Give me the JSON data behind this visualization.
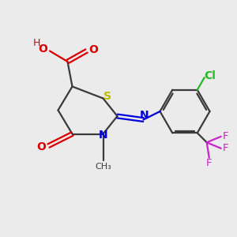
{
  "background_color": "#ebebeb",
  "bond_color": "#3a3a3a",
  "colors": {
    "S": "#bbbb00",
    "N": "#0000dd",
    "O": "#dd0000",
    "Cl": "#22bb22",
    "F": "#cc22cc",
    "H": "#dd0000"
  },
  "figsize": [
    3.0,
    3.0
  ],
  "dpi": 100
}
